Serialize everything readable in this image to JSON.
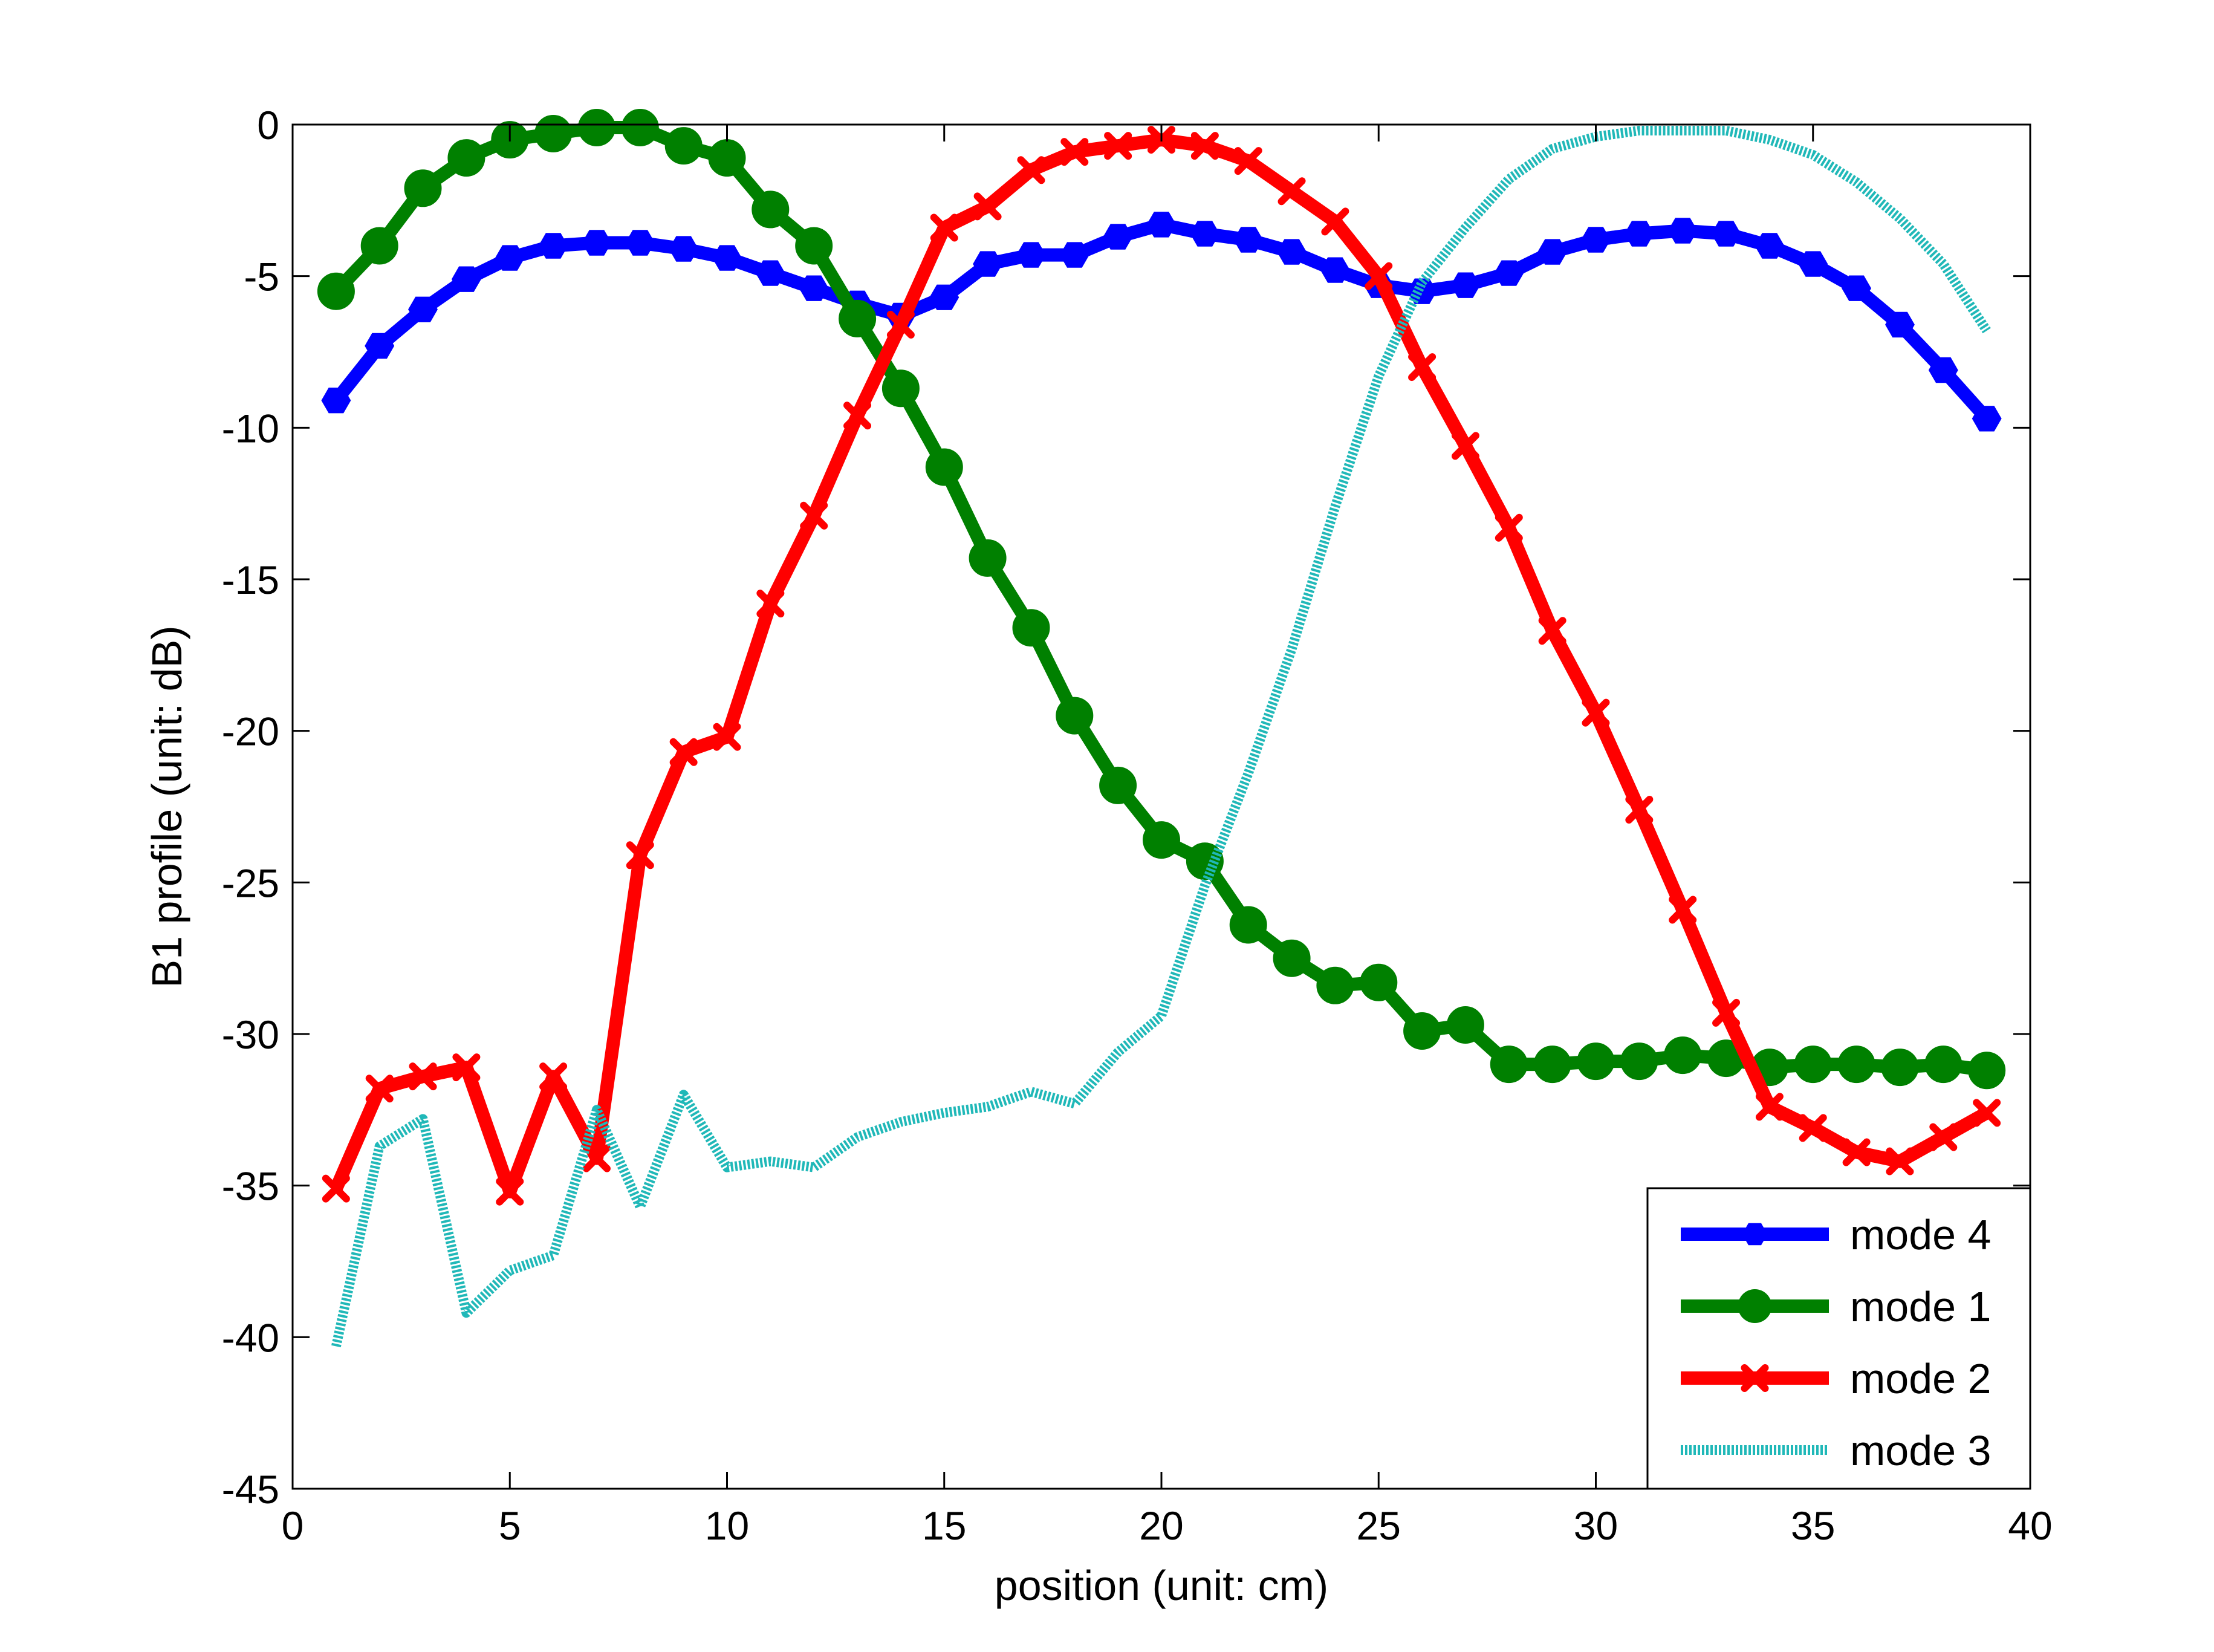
{
  "chart_data": {
    "type": "line",
    "title": "",
    "xlabel": "position (unit: cm)",
    "ylabel": "B1 profile (unit: dB)",
    "xlim": [
      0,
      40
    ],
    "ylim": [
      -45,
      0
    ],
    "xticks": [
      0,
      5,
      10,
      15,
      20,
      25,
      30,
      35,
      40
    ],
    "yticks": [
      0,
      -5,
      -10,
      -15,
      -20,
      -25,
      -30,
      -35,
      -40,
      -45
    ],
    "grid": false,
    "legend_position": "bottom-right",
    "x": [
      1,
      2,
      3,
      4,
      5,
      6,
      7,
      8,
      9,
      10,
      11,
      12,
      13,
      14,
      15,
      16,
      17,
      18,
      19,
      20,
      21,
      22,
      23,
      24,
      25,
      26,
      27,
      28,
      29,
      30,
      31,
      32,
      33,
      34,
      35,
      36,
      37,
      38,
      39
    ],
    "series": [
      {
        "name": "mode 4",
        "color": "#0000ff",
        "marker": "hexagram",
        "line_style": "solid",
        "values": [
          -9.1,
          -7.3,
          -6.1,
          -5.1,
          -4.4,
          -4.0,
          -3.9,
          -3.9,
          -4.1,
          -4.4,
          -4.9,
          -5.4,
          -5.9,
          -6.3,
          -5.7,
          -4.6,
          -4.3,
          -4.3,
          -3.7,
          -3.3,
          -3.6,
          -3.8,
          -4.2,
          -4.8,
          -5.3,
          -5.5,
          -5.3,
          -4.9,
          -4.2,
          -3.8,
          -3.6,
          -3.5,
          -3.6,
          -4.0,
          -4.6,
          -5.4,
          -6.6,
          -8.1,
          -9.7
        ]
      },
      {
        "name": "mode 1",
        "color": "#008000",
        "marker": "circle",
        "line_style": "solid",
        "values": [
          -5.5,
          -4.0,
          -2.1,
          -1.1,
          -0.5,
          -0.3,
          -0.1,
          -0.1,
          -0.7,
          -1.1,
          -2.8,
          -4.0,
          -6.4,
          -8.7,
          -11.3,
          -14.3,
          -16.6,
          -19.5,
          -21.8,
          -23.6,
          -24.3,
          -26.4,
          -27.5,
          -28.4,
          -28.3,
          -29.9,
          -29.7,
          -31.0,
          -31.0,
          -30.9,
          -30.9,
          -30.7,
          -30.8,
          -31.1,
          -31.0,
          -31.0,
          -31.1,
          -31.0,
          -31.2
        ]
      },
      {
        "name": "mode 2",
        "color": "#ff0000",
        "marker": "cross",
        "line_style": "solid",
        "values": [
          -35.1,
          -31.8,
          -31.4,
          -31.1,
          -35.2,
          -31.4,
          -34.1,
          -24.1,
          -20.7,
          -20.2,
          -15.8,
          -12.9,
          -9.6,
          -6.6,
          -3.4,
          -2.7,
          -1.5,
          -0.9,
          -0.7,
          -0.5,
          -0.7,
          -1.2,
          -2.2,
          -3.2,
          -5.0,
          -8.0,
          -10.6,
          -13.3,
          -16.7,
          -19.4,
          -22.6,
          -25.9,
          -29.3,
          -32.4,
          -33.1,
          -33.9,
          -34.2,
          -33.4,
          -32.6
        ]
      },
      {
        "name": "mode 3",
        "color": "#20b8b8",
        "marker": "none",
        "line_style": "dotted",
        "values": [
          -40.3,
          -33.7,
          -32.8,
          -39.2,
          -37.8,
          -37.3,
          -32.5,
          -35.7,
          -32.0,
          -34.4,
          -34.2,
          -34.4,
          -33.4,
          -32.9,
          -32.6,
          -32.4,
          -31.9,
          -32.3,
          -30.6,
          -29.4,
          -25.1,
          -21.4,
          -17.3,
          -12.6,
          -8.3,
          -5.2,
          -3.4,
          -1.8,
          -0.8,
          -0.4,
          -0.2,
          -0.2,
          -0.2,
          -0.5,
          -1.0,
          -1.9,
          -3.1,
          -4.6,
          -6.8
        ]
      }
    ]
  }
}
